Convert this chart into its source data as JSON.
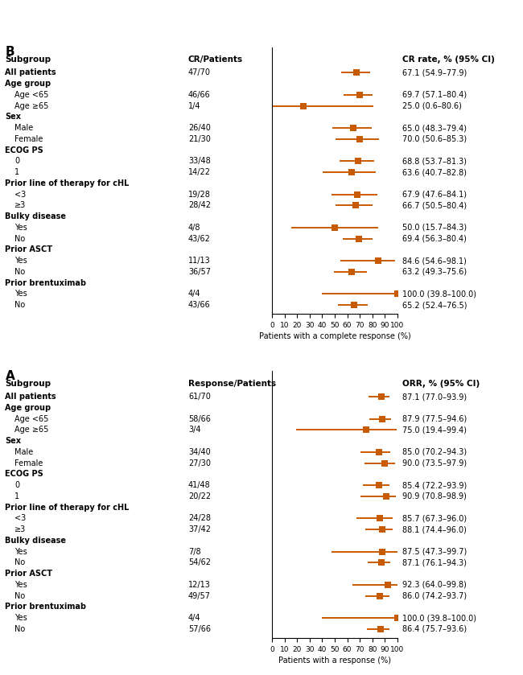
{
  "panel_A": {
    "title": "A",
    "col_header_subgroup": "Subgroup",
    "col_header_n": "Response/Patients",
    "col_header_ci": "ORR, % (95% CI)",
    "xlabel": "Patients with a response (%)",
    "xlim": [
      0,
      100
    ],
    "xticks": [
      0,
      10,
      20,
      30,
      40,
      50,
      60,
      70,
      80,
      90,
      100
    ],
    "rows": [
      {
        "label": "All patients",
        "bold": true,
        "indent": 0,
        "n": "61/70",
        "est": 87.1,
        "lo": 77.0,
        "hi": 93.9,
        "ci_str": "87.1 (77.0–93.9)"
      },
      {
        "label": "Age group",
        "bold": true,
        "indent": 0,
        "n": "",
        "est": null,
        "lo": null,
        "hi": null,
        "ci_str": ""
      },
      {
        "label": "Age <65",
        "bold": false,
        "indent": 1,
        "n": "58/66",
        "est": 87.9,
        "lo": 77.5,
        "hi": 94.6,
        "ci_str": "87.9 (77.5–94.6)"
      },
      {
        "label": "Age ≥65",
        "bold": false,
        "indent": 1,
        "n": "3/4",
        "est": 75.0,
        "lo": 19.4,
        "hi": 99.4,
        "ci_str": "75.0 (19.4–99.4)"
      },
      {
        "label": "Sex",
        "bold": true,
        "indent": 0,
        "n": "",
        "est": null,
        "lo": null,
        "hi": null,
        "ci_str": ""
      },
      {
        "label": "Male",
        "bold": false,
        "indent": 1,
        "n": "34/40",
        "est": 85.0,
        "lo": 70.2,
        "hi": 94.3,
        "ci_str": "85.0 (70.2–94.3)"
      },
      {
        "label": "Female",
        "bold": false,
        "indent": 1,
        "n": "27/30",
        "est": 90.0,
        "lo": 73.5,
        "hi": 97.9,
        "ci_str": "90.0 (73.5–97.9)"
      },
      {
        "label": "ECOG PS",
        "bold": true,
        "indent": 0,
        "n": "",
        "est": null,
        "lo": null,
        "hi": null,
        "ci_str": ""
      },
      {
        "label": "0",
        "bold": false,
        "indent": 1,
        "n": "41/48",
        "est": 85.4,
        "lo": 72.2,
        "hi": 93.9,
        "ci_str": "85.4 (72.2–93.9)"
      },
      {
        "label": "1",
        "bold": false,
        "indent": 1,
        "n": "20/22",
        "est": 90.9,
        "lo": 70.8,
        "hi": 98.9,
        "ci_str": "90.9 (70.8–98.9)"
      },
      {
        "label": "Prior line of therapy for cHL",
        "bold": true,
        "indent": 0,
        "n": "",
        "est": null,
        "lo": null,
        "hi": null,
        "ci_str": ""
      },
      {
        "label": "<3",
        "bold": false,
        "indent": 1,
        "n": "24/28",
        "est": 85.7,
        "lo": 67.3,
        "hi": 96.0,
        "ci_str": "85.7 (67.3–96.0)"
      },
      {
        "label": "≥3",
        "bold": false,
        "indent": 1,
        "n": "37/42",
        "est": 88.1,
        "lo": 74.4,
        "hi": 96.0,
        "ci_str": "88.1 (74.4–96.0)"
      },
      {
        "label": "Bulky disease",
        "bold": true,
        "indent": 0,
        "n": "",
        "est": null,
        "lo": null,
        "hi": null,
        "ci_str": ""
      },
      {
        "label": "Yes",
        "bold": false,
        "indent": 1,
        "n": "7/8",
        "est": 87.5,
        "lo": 47.3,
        "hi": 99.7,
        "ci_str": "87.5 (47.3–99.7)"
      },
      {
        "label": "No",
        "bold": false,
        "indent": 1,
        "n": "54/62",
        "est": 87.1,
        "lo": 76.1,
        "hi": 94.3,
        "ci_str": "87.1 (76.1–94.3)"
      },
      {
        "label": "Prior ASCT",
        "bold": true,
        "indent": 0,
        "n": "",
        "est": null,
        "lo": null,
        "hi": null,
        "ci_str": ""
      },
      {
        "label": "Yes",
        "bold": false,
        "indent": 1,
        "n": "12/13",
        "est": 92.3,
        "lo": 64.0,
        "hi": 99.8,
        "ci_str": "92.3 (64.0–99.8)"
      },
      {
        "label": "No",
        "bold": false,
        "indent": 1,
        "n": "49/57",
        "est": 86.0,
        "lo": 74.2,
        "hi": 93.7,
        "ci_str": "86.0 (74.2–93.7)"
      },
      {
        "label": "Prior brentuximab",
        "bold": true,
        "indent": 0,
        "n": "",
        "est": null,
        "lo": null,
        "hi": null,
        "ci_str": ""
      },
      {
        "label": "Yes",
        "bold": false,
        "indent": 1,
        "n": "4/4",
        "est": 100.0,
        "lo": 39.8,
        "hi": 100.0,
        "ci_str": "100.0 (39.8–100.0)"
      },
      {
        "label": "No",
        "bold": false,
        "indent": 1,
        "n": "57/66",
        "est": 86.4,
        "lo": 75.7,
        "hi": 93.6,
        "ci_str": "86.4 (75.7–93.6)"
      }
    ]
  },
  "panel_B": {
    "title": "B",
    "col_header_subgroup": "Subgroup",
    "col_header_n": "CR/Patients",
    "col_header_ci": "CR rate, % (95% CI)",
    "xlabel": "Patients with a complete response (%)",
    "xlim": [
      0,
      100
    ],
    "xticks": [
      0,
      10,
      20,
      30,
      40,
      50,
      60,
      70,
      80,
      90,
      100
    ],
    "rows": [
      {
        "label": "All patients",
        "bold": true,
        "indent": 0,
        "n": "47/70",
        "est": 67.1,
        "lo": 54.9,
        "hi": 77.9,
        "ci_str": "67.1 (54.9–77.9)"
      },
      {
        "label": "Age group",
        "bold": true,
        "indent": 0,
        "n": "",
        "est": null,
        "lo": null,
        "hi": null,
        "ci_str": ""
      },
      {
        "label": "Age <65",
        "bold": false,
        "indent": 1,
        "n": "46/66",
        "est": 69.7,
        "lo": 57.1,
        "hi": 80.4,
        "ci_str": "69.7 (57.1–80.4)"
      },
      {
        "label": "Age ≥65",
        "bold": false,
        "indent": 1,
        "n": "1/4",
        "est": 25.0,
        "lo": 0.6,
        "hi": 80.6,
        "ci_str": "25.0 (0.6–80.6)"
      },
      {
        "label": "Sex",
        "bold": true,
        "indent": 0,
        "n": "",
        "est": null,
        "lo": null,
        "hi": null,
        "ci_str": ""
      },
      {
        "label": "Male",
        "bold": false,
        "indent": 1,
        "n": "26/40",
        "est": 65.0,
        "lo": 48.3,
        "hi": 79.4,
        "ci_str": "65.0 (48.3–79.4)"
      },
      {
        "label": "Female",
        "bold": false,
        "indent": 1,
        "n": "21/30",
        "est": 70.0,
        "lo": 50.6,
        "hi": 85.3,
        "ci_str": "70.0 (50.6–85.3)"
      },
      {
        "label": "ECOG PS",
        "bold": true,
        "indent": 0,
        "n": "",
        "est": null,
        "lo": null,
        "hi": null,
        "ci_str": ""
      },
      {
        "label": "0",
        "bold": false,
        "indent": 1,
        "n": "33/48",
        "est": 68.8,
        "lo": 53.7,
        "hi": 81.3,
        "ci_str": "68.8 (53.7–81.3)"
      },
      {
        "label": "1",
        "bold": false,
        "indent": 1,
        "n": "14/22",
        "est": 63.6,
        "lo": 40.7,
        "hi": 82.8,
        "ci_str": "63.6 (40.7–82.8)"
      },
      {
        "label": "Prior line of therapy for cHL",
        "bold": true,
        "indent": 0,
        "n": "",
        "est": null,
        "lo": null,
        "hi": null,
        "ci_str": ""
      },
      {
        "label": "<3",
        "bold": false,
        "indent": 1,
        "n": "19/28",
        "est": 67.9,
        "lo": 47.6,
        "hi": 84.1,
        "ci_str": "67.9 (47.6–84.1)"
      },
      {
        "label": "≥3",
        "bold": false,
        "indent": 1,
        "n": "28/42",
        "est": 66.7,
        "lo": 50.5,
        "hi": 80.4,
        "ci_str": "66.7 (50.5–80.4)"
      },
      {
        "label": "Bulky disease",
        "bold": true,
        "indent": 0,
        "n": "",
        "est": null,
        "lo": null,
        "hi": null,
        "ci_str": ""
      },
      {
        "label": "Yes",
        "bold": false,
        "indent": 1,
        "n": "4/8",
        "est": 50.0,
        "lo": 15.7,
        "hi": 84.3,
        "ci_str": "50.0 (15.7–84.3)"
      },
      {
        "label": "No",
        "bold": false,
        "indent": 1,
        "n": "43/62",
        "est": 69.4,
        "lo": 56.3,
        "hi": 80.4,
        "ci_str": "69.4 (56.3–80.4)"
      },
      {
        "label": "Prior ASCT",
        "bold": true,
        "indent": 0,
        "n": "",
        "est": null,
        "lo": null,
        "hi": null,
        "ci_str": ""
      },
      {
        "label": "Yes",
        "bold": false,
        "indent": 1,
        "n": "11/13",
        "est": 84.6,
        "lo": 54.6,
        "hi": 98.1,
        "ci_str": "84.6 (54.6–98.1)"
      },
      {
        "label": "No",
        "bold": false,
        "indent": 1,
        "n": "36/57",
        "est": 63.2,
        "lo": 49.3,
        "hi": 75.6,
        "ci_str": "63.2 (49.3–75.6)"
      },
      {
        "label": "Prior brentuximab",
        "bold": true,
        "indent": 0,
        "n": "",
        "est": null,
        "lo": null,
        "hi": null,
        "ci_str": ""
      },
      {
        "label": "Yes",
        "bold": false,
        "indent": 1,
        "n": "4/4",
        "est": 100.0,
        "lo": 39.8,
        "hi": 100.0,
        "ci_str": "100.0 (39.8–100.0)"
      },
      {
        "label": "No",
        "bold": false,
        "indent": 1,
        "n": "43/66",
        "est": 65.2,
        "lo": 52.4,
        "hi": 76.5,
        "ci_str": "65.2 (52.4–76.5)"
      }
    ]
  },
  "marker_color": "#C85A00",
  "line_color": "#C85A00",
  "marker_size": 5.5,
  "line_width": 1.4,
  "font_size": 7.0,
  "header_font_size": 7.5,
  "title_font_size": 11
}
